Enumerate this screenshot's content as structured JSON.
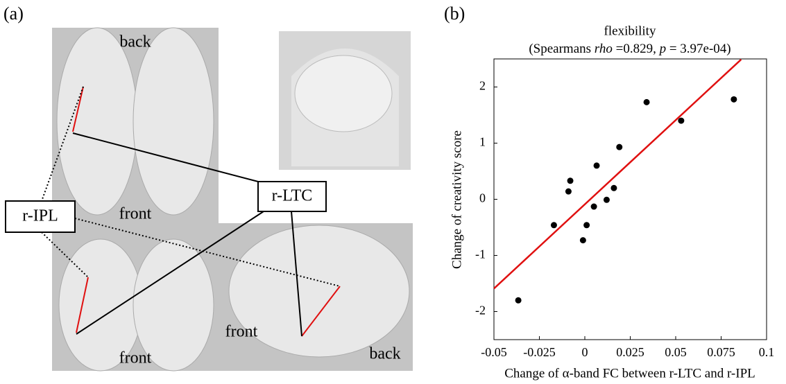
{
  "panel_a": {
    "label": "(a)",
    "top_view": {
      "top": "back",
      "bottom": "front"
    },
    "front_view": {
      "bottom": "front"
    },
    "side_view": {
      "left": "front",
      "right": "back"
    },
    "regions": [
      "r-IPL",
      "r-LTC"
    ]
  },
  "chart_data": {
    "type": "scatter",
    "panel_label": "(b)",
    "title": "flexibility",
    "subtitle_parts": [
      "(Spearmans ",
      "rho",
      " =0.829, ",
      "p",
      "  = 3.97e-04)"
    ],
    "x_label": "Change of α-band FC between r-LTC and r-IPL",
    "y_label": "Change of creativity score",
    "xlim": [
      -0.05,
      0.1
    ],
    "ylim": [
      -2.5,
      2.5
    ],
    "xticks": [
      -0.05,
      -0.025,
      0,
      0.025,
      0.05,
      0.075,
      0.1
    ],
    "yticks": [
      -2,
      -1,
      0,
      1,
      2
    ],
    "series": [
      {
        "color": "#000000",
        "x": [
          0.082,
          0.034,
          0.053,
          0.019,
          0.0065,
          -0.008,
          -0.009,
          0.016,
          0.005,
          0.012,
          0.001,
          -0.001,
          -0.017,
          -0.0366
        ],
        "values": [
          1.78,
          1.73,
          1.4,
          0.93,
          0.6,
          0.33,
          0.14,
          0.2,
          -0.13,
          -0.01,
          -0.46,
          -0.73,
          -0.46,
          -1.8
        ]
      }
    ],
    "fit": {
      "color": "#e01010",
      "x": [
        -0.05,
        0.086
      ],
      "values": [
        -1.59,
        2.49
      ]
    }
  }
}
